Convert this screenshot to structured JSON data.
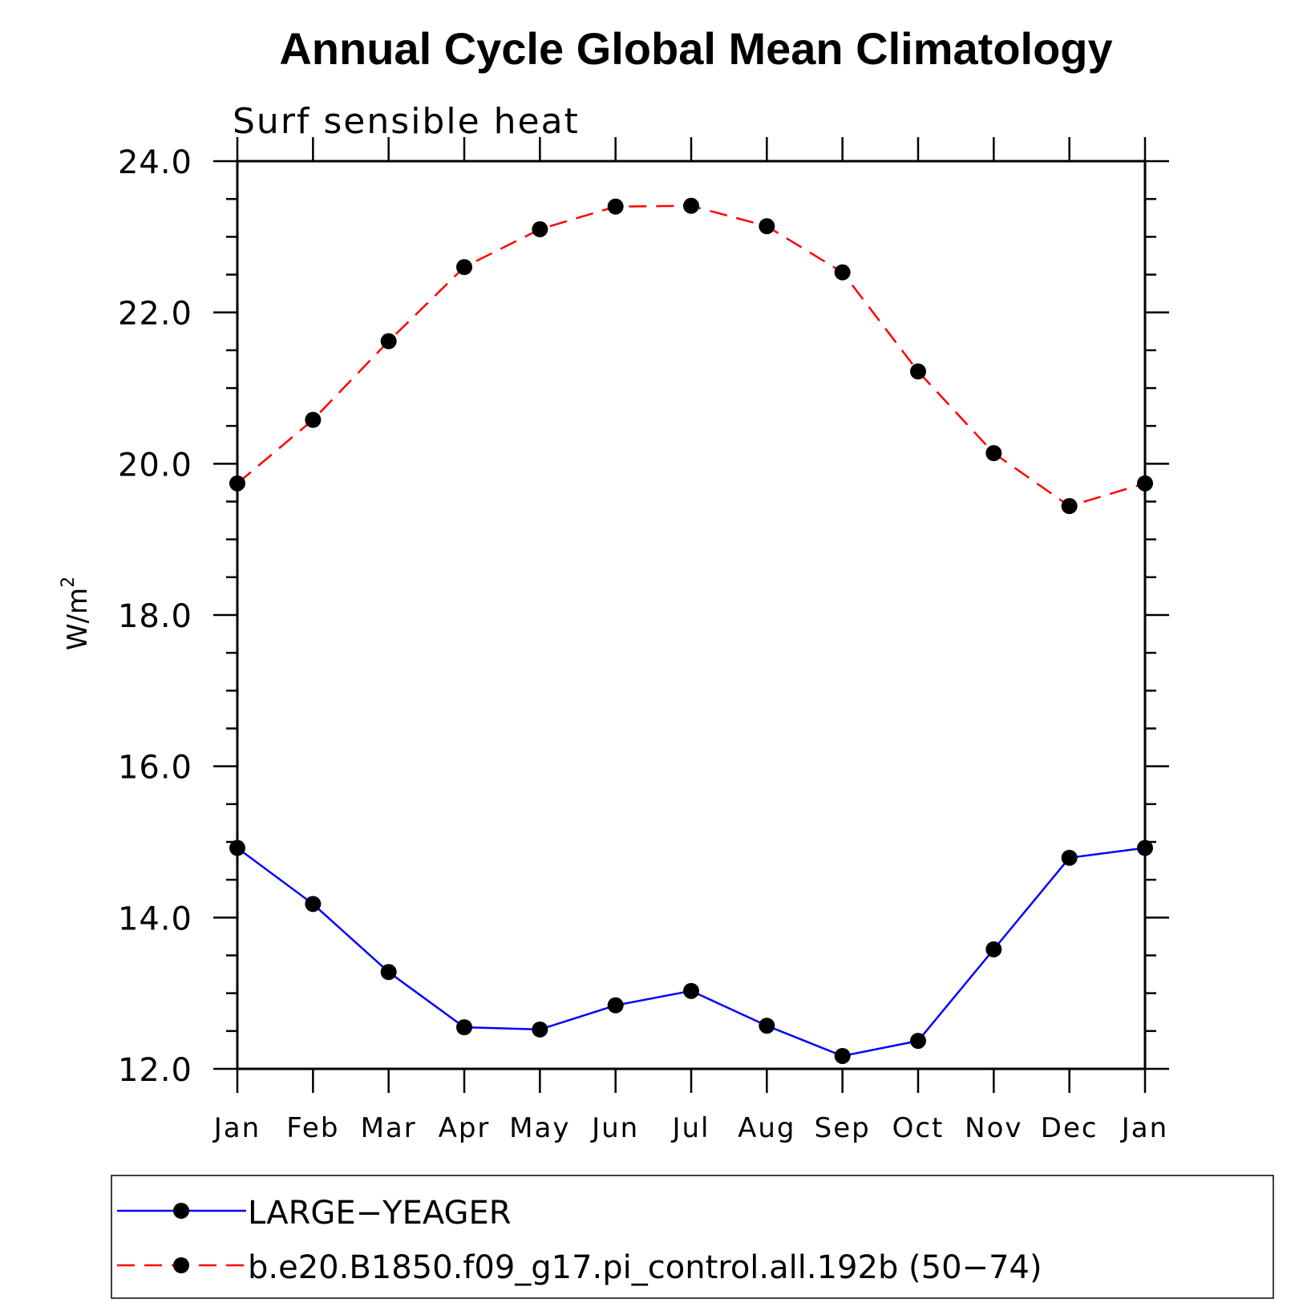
{
  "chart_data": {
    "type": "line",
    "title": "Annual Cycle Global Mean Climatology",
    "subtitle": "Surf sensible heat",
    "ylabel": "W/m",
    "ylabel_superscript": "2",
    "ylim": [
      12.0,
      24.0
    ],
    "yticks": [
      "12.0",
      "14.0",
      "16.0",
      "18.0",
      "20.0",
      "22.0",
      "24.0"
    ],
    "categories": [
      "Jan",
      "Feb",
      "Mar",
      "Apr",
      "May",
      "Jun",
      "Jul",
      "Aug",
      "Sep",
      "Oct",
      "Nov",
      "Dec",
      "Jan"
    ],
    "series": [
      {
        "name": "LARGE−YEAGER",
        "color": "#0000ff",
        "line_style": "solid",
        "marker": "filled-circle",
        "values": [
          14.92,
          14.18,
          13.28,
          12.55,
          12.52,
          12.84,
          13.03,
          12.57,
          12.17,
          12.37,
          13.58,
          14.79,
          14.92
        ]
      },
      {
        "name": "b.e20.B1850.f09_g17.pi_control.all.192b (50−74)",
        "color": "#ff0000",
        "line_style": "dashed",
        "marker": "filled-circle",
        "values": [
          19.74,
          20.58,
          21.62,
          22.6,
          23.1,
          23.4,
          23.41,
          23.14,
          22.53,
          21.22,
          20.14,
          19.44,
          19.74
        ]
      }
    ],
    "grid": false,
    "legend_placement": "bottom"
  }
}
